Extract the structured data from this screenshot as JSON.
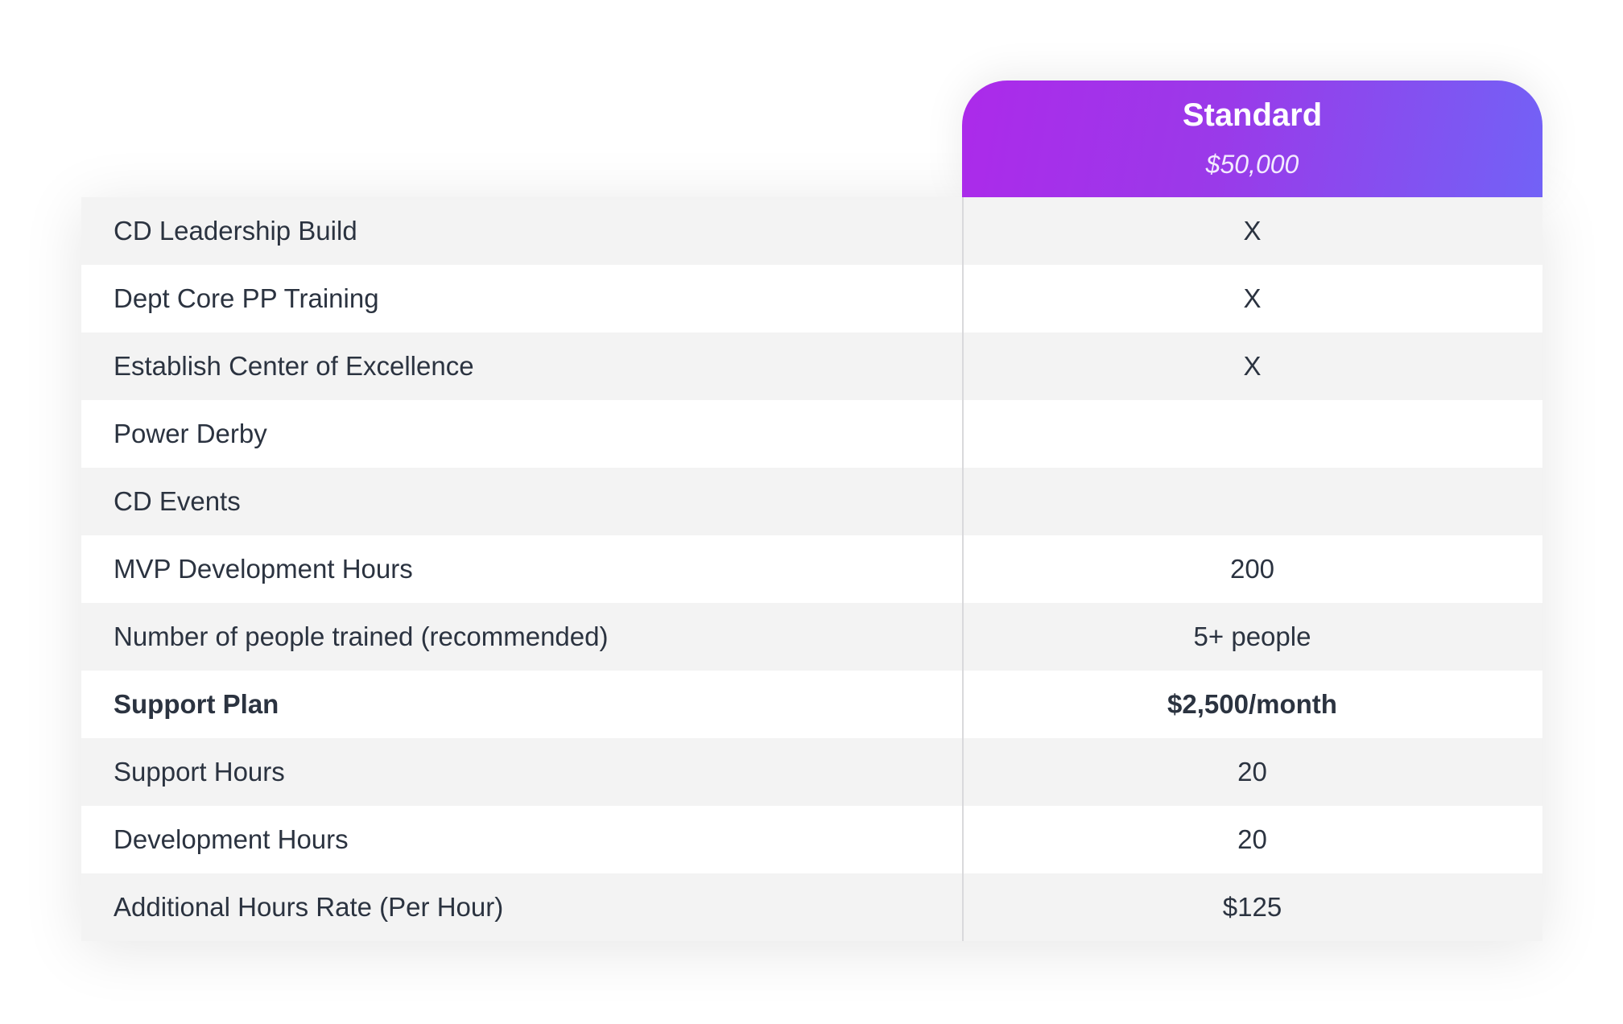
{
  "plan": {
    "name": "Standard",
    "price": "$50,000"
  },
  "rows": [
    {
      "label": "CD Leadership Build",
      "value": "X"
    },
    {
      "label": "Dept Core PP Training",
      "value": "X"
    },
    {
      "label": "Establish Center of Excellence",
      "value": "X"
    },
    {
      "label": "Power Derby",
      "value": ""
    },
    {
      "label": "CD Events",
      "value": ""
    },
    {
      "label": "MVP Development Hours",
      "value": "200"
    },
    {
      "label": "Number of people trained (recommended)",
      "value": "5+ people"
    },
    {
      "label": "Support Plan",
      "value": "$2,500/month"
    },
    {
      "label": "Support Hours",
      "value": "20"
    },
    {
      "label": "Development Hours",
      "value": "20"
    },
    {
      "label": "Additional Hours Rate (Per Hour)",
      "value": "$125"
    }
  ],
  "colors": {
    "header_gradient_start": "#ac2aea",
    "header_gradient_end": "#7262f6",
    "row_alt": "#f3f3f3",
    "text": "#2b3340"
  }
}
